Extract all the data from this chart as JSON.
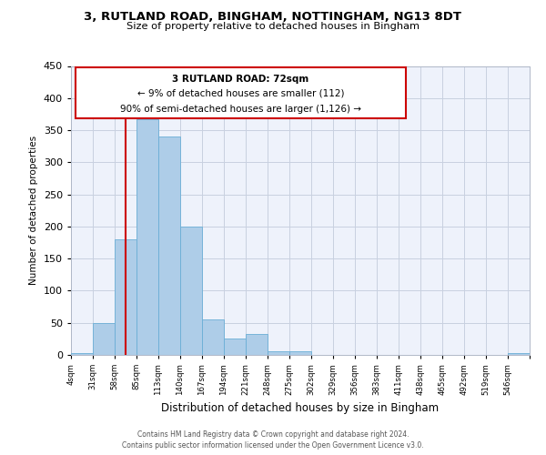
{
  "title": "3, RUTLAND ROAD, BINGHAM, NOTTINGHAM, NG13 8DT",
  "subtitle": "Size of property relative to detached houses in Bingham",
  "xlabel": "Distribution of detached houses by size in Bingham",
  "ylabel": "Number of detached properties",
  "bin_labels": [
    "4sqm",
    "31sqm",
    "58sqm",
    "85sqm",
    "113sqm",
    "140sqm",
    "167sqm",
    "194sqm",
    "221sqm",
    "248sqm",
    "275sqm",
    "302sqm",
    "329sqm",
    "356sqm",
    "383sqm",
    "411sqm",
    "438sqm",
    "465sqm",
    "492sqm",
    "519sqm",
    "546sqm"
  ],
  "bar_values": [
    3,
    50,
    180,
    367,
    340,
    200,
    55,
    26,
    33,
    5,
    5,
    0,
    0,
    0,
    0,
    0,
    0,
    0,
    0,
    0,
    3
  ],
  "bar_color": "#aecde8",
  "bar_edgecolor": "#6aaed6",
  "vline_color": "#cc0000",
  "ylim": [
    0,
    450
  ],
  "yticks": [
    0,
    50,
    100,
    150,
    200,
    250,
    300,
    350,
    400,
    450
  ],
  "annotation_title": "3 RUTLAND ROAD: 72sqm",
  "annotation_line1": "← 9% of detached houses are smaller (112)",
  "annotation_line2": "90% of semi-detached houses are larger (1,126) →",
  "annotation_box_color": "#cc0000",
  "footer_line1": "Contains HM Land Registry data © Crown copyright and database right 2024.",
  "footer_line2": "Contains public sector information licensed under the Open Government Licence v3.0.",
  "bg_color": "#eef2fb",
  "grid_color": "#c8d0e0"
}
